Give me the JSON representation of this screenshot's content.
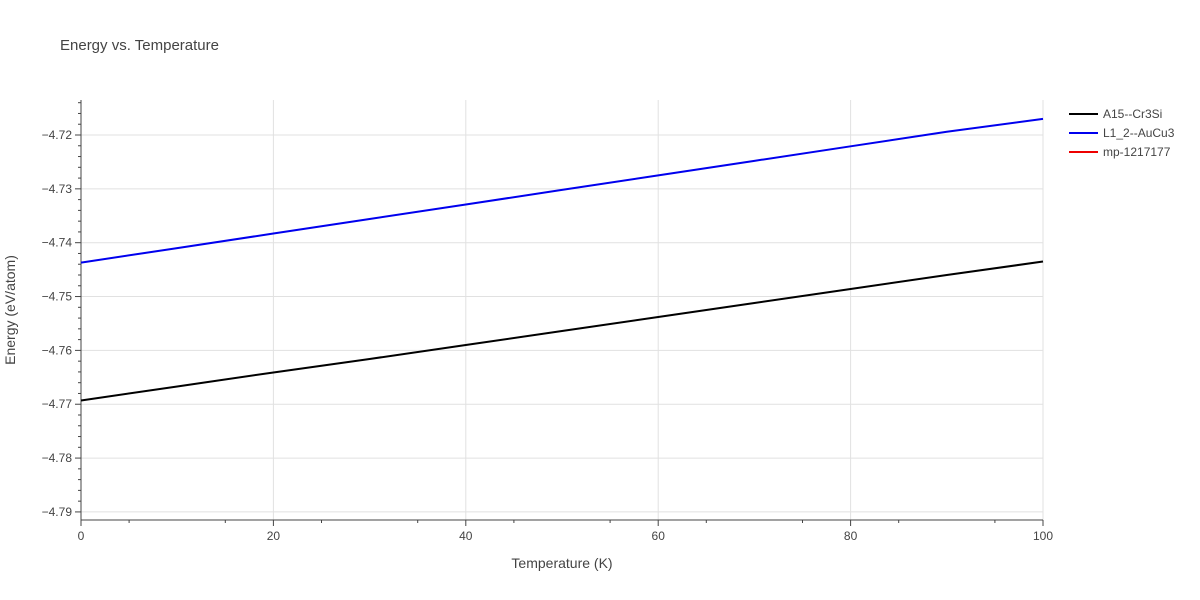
{
  "chart_data": {
    "type": "line",
    "title": "Energy vs. Temperature",
    "xlabel": "Temperature (K)",
    "ylabel": "Energy (eV/atom)",
    "xlim": [
      0,
      100
    ],
    "ylim": [
      -4.7915,
      -4.7135
    ],
    "x_ticks": [
      0,
      20,
      40,
      60,
      80,
      100
    ],
    "y_ticks": [
      -4.79,
      -4.78,
      -4.77,
      -4.76,
      -4.75,
      -4.74,
      -4.73,
      -4.72
    ],
    "y_tick_labels": [
      "−4.79",
      "−4.78",
      "−4.77",
      "−4.76",
      "−4.75",
      "−4.74",
      "−4.73",
      "−4.72"
    ],
    "grid": true,
    "legend_position": "right",
    "series": [
      {
        "name": "A15--Cr3Si",
        "color": "#000000",
        "x": [
          0,
          10,
          20,
          30,
          40,
          50,
          60,
          70,
          80,
          90,
          100
        ],
        "y": [
          -4.7693,
          -4.7667,
          -4.7641,
          -4.7616,
          -4.759,
          -4.7564,
          -4.7538,
          -4.7512,
          -4.7486,
          -4.746,
          -4.7435
        ]
      },
      {
        "name": "L1_2--AuCu3",
        "color": "#0000ee",
        "x": [
          0,
          10,
          20,
          30,
          40,
          50,
          60,
          70,
          80,
          90,
          100
        ],
        "y": [
          -4.7437,
          -4.741,
          -4.7383,
          -4.7356,
          -4.7329,
          -4.7302,
          -4.7275,
          -4.7248,
          -4.7221,
          -4.7194,
          -4.717
        ]
      },
      {
        "name": "mp-1217177",
        "color": "#ee0000",
        "x": [],
        "y": []
      }
    ]
  }
}
